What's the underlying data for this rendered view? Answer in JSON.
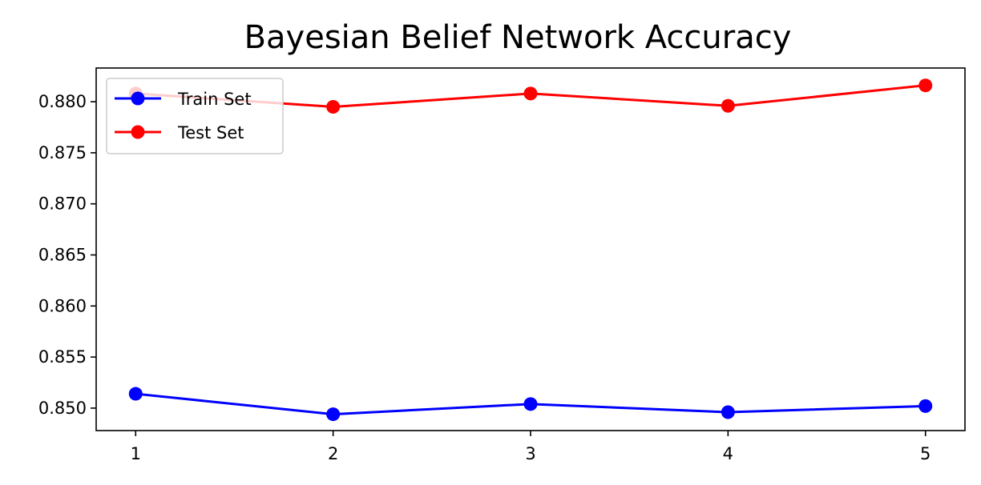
{
  "chart_data": {
    "type": "line",
    "title": "Bayesian Belief Network Accuracy",
    "xlabel": "",
    "ylabel": "",
    "x": [
      1,
      2,
      3,
      4,
      5
    ],
    "xlim": [
      0.8,
      5.2
    ],
    "ylim": [
      0.8478,
      0.8833
    ],
    "xticks": [
      1,
      2,
      3,
      4,
      5
    ],
    "yticks": [
      0.85,
      0.855,
      0.86,
      0.865,
      0.87,
      0.875,
      0.88
    ],
    "ytick_labels": [
      "0.850",
      "0.855",
      "0.860",
      "0.865",
      "0.870",
      "0.875",
      "0.880"
    ],
    "grid": false,
    "legend_position": "top-left",
    "series": [
      {
        "name": "Train Set",
        "color": "#0000ff",
        "marker": "circle",
        "values": [
          0.8514,
          0.8494,
          0.8504,
          0.8496,
          0.8502
        ]
      },
      {
        "name": "Test Set",
        "color": "#ff0000",
        "marker": "circle",
        "values": [
          0.8808,
          0.8795,
          0.8808,
          0.8796,
          0.8816
        ]
      }
    ]
  }
}
